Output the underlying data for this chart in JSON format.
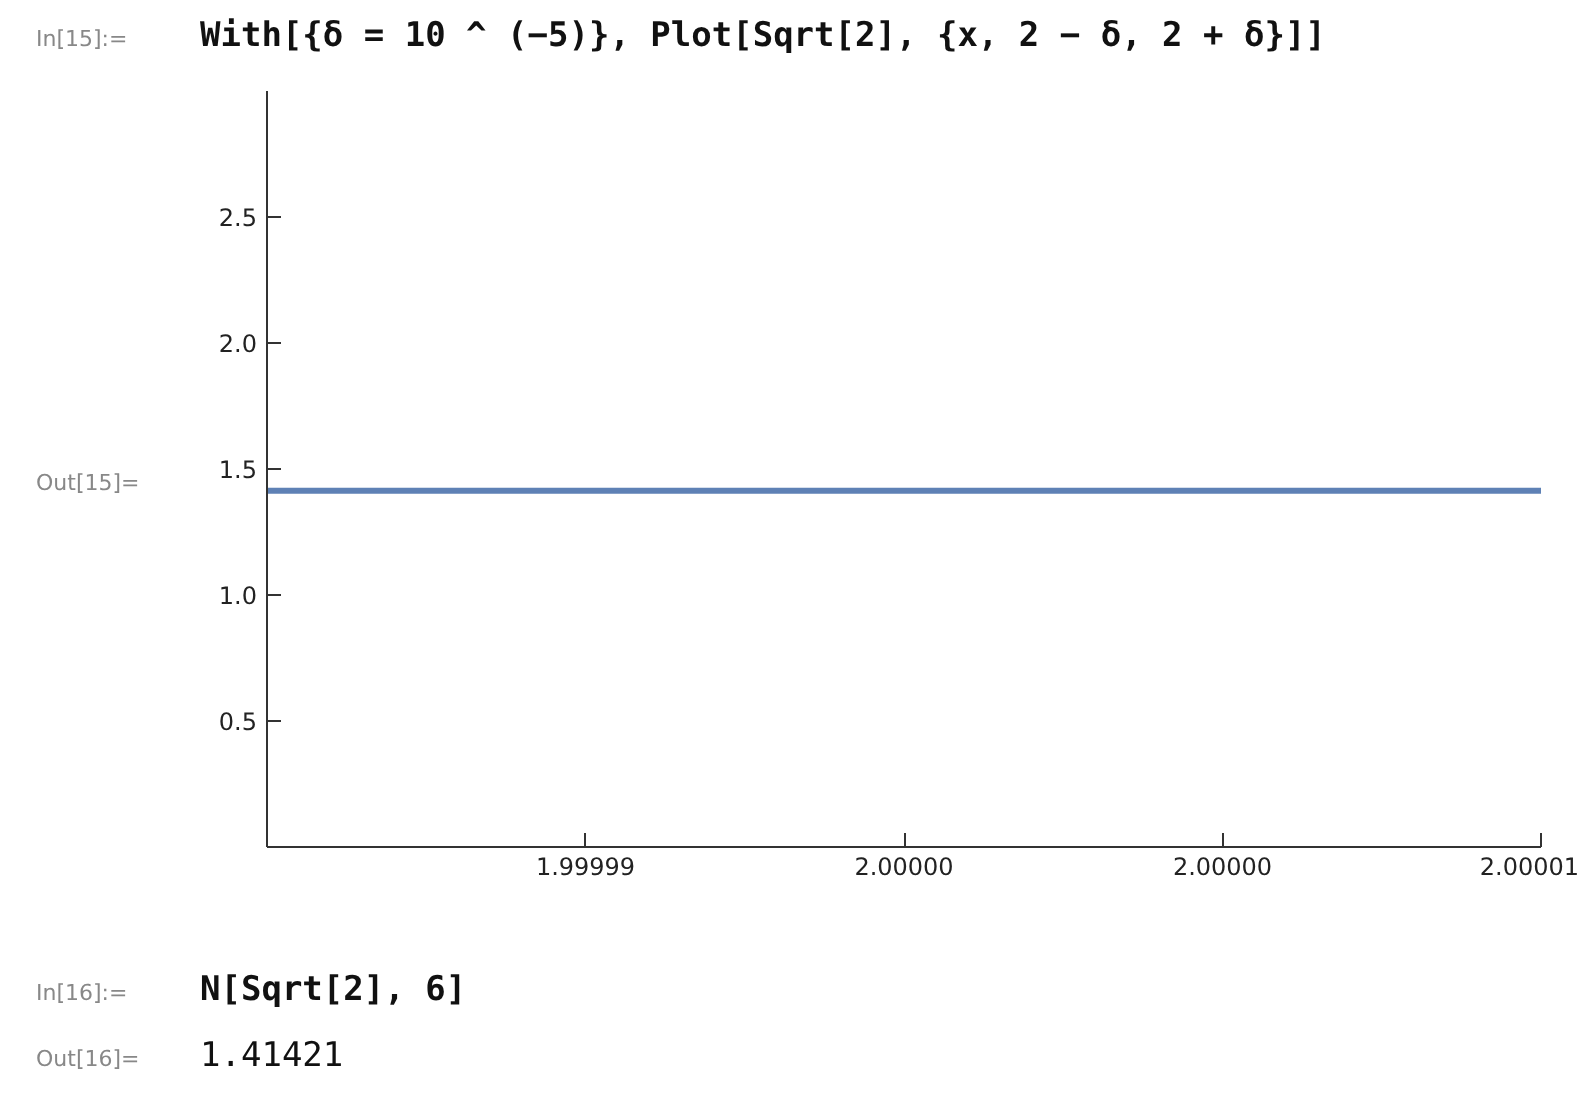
{
  "chart_data": {
    "type": "line",
    "title": "With[{δ = 10 ^ (−5)}, Plot[Sqrt[2], {x, 2 − δ, 2 + δ}]]",
    "x": [
      1.99999,
      2.00001
    ],
    "series": [
      {
        "color": "#5e81b5",
        "values": [
          1.414,
          1.414
        ]
      }
    ],
    "xlim": [
      1.99999,
      2.00001
    ],
    "xticks": [
      {
        "value": 1.999995,
        "label": "1.99999"
      },
      {
        "value": 2.0,
        "label": "2.00000"
      },
      {
        "value": 2.000005,
        "label": "2.00000"
      },
      {
        "value": 2.00001,
        "label": "2.00001"
      }
    ],
    "ylim": [
      0,
      3
    ],
    "yticks": [
      0.5,
      {
        "value": 1,
        "label": "1.0"
      },
      1.5,
      {
        "value": 2,
        "label": "2.0"
      },
      2.5
    ],
    "grid": false,
    "marker": "none",
    "line_style": "solid",
    "annotations": [
      "In[15]:=",
      "Out[15]=",
      "In[16]:=",
      "N[Sqrt[2], 6]",
      "Out[16]=",
      "1.41421"
    ]
  }
}
